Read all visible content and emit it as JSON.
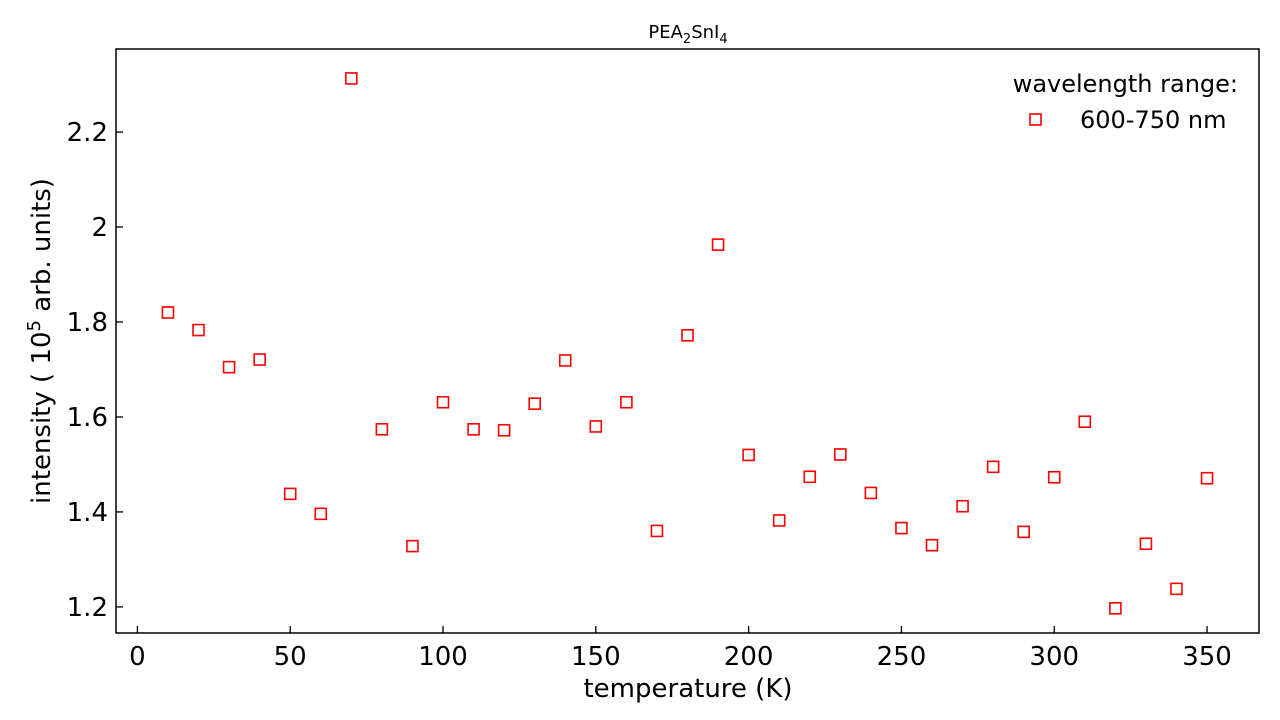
{
  "chart_data": {
    "type": "scatter",
    "title": {
      "base": "PEA",
      "sub1": "2",
      "mid": "SnI",
      "sub2": "4"
    },
    "xlabel": "temperature (K)",
    "ylabel": {
      "pre": "intensity ( 10",
      "sup": "5",
      "post": " arb. units)"
    },
    "xlim": [
      -7,
      367
    ],
    "ylim": [
      1.145,
      2.375
    ],
    "xticks": [
      0,
      50,
      100,
      150,
      200,
      250,
      300,
      350
    ],
    "xtick_labels": [
      "0",
      "50",
      "100",
      "150",
      "200",
      "250",
      "300",
      "350"
    ],
    "yticks": [
      1.2,
      1.4,
      1.6,
      1.8,
      2.0,
      2.2
    ],
    "ytick_labels": [
      "1.2",
      "1.4",
      "1.6",
      "1.8",
      "2",
      "2.2"
    ],
    "grid": false,
    "legend": {
      "title": "wavelength range:",
      "position": "top-right"
    },
    "series": [
      {
        "name": "600-750 nm",
        "color": "#ff0000",
        "marker": "square-open",
        "x": [
          10,
          20,
          30,
          40,
          50,
          60,
          70,
          80,
          90,
          100,
          110,
          120,
          130,
          140,
          150,
          160,
          170,
          180,
          190,
          200,
          210,
          220,
          230,
          240,
          250,
          260,
          270,
          280,
          290,
          300,
          310,
          320,
          330,
          340,
          350
        ],
        "y": [
          1.82,
          1.783,
          1.705,
          1.721,
          1.438,
          1.396,
          2.313,
          1.574,
          1.328,
          1.631,
          1.574,
          1.572,
          1.628,
          1.719,
          1.58,
          1.631,
          1.36,
          1.772,
          1.963,
          1.52,
          1.382,
          1.474,
          1.521,
          1.44,
          1.366,
          1.33,
          1.412,
          1.495,
          1.358,
          1.473,
          1.59,
          1.197,
          1.333,
          1.238,
          1.471
        ]
      }
    ]
  }
}
